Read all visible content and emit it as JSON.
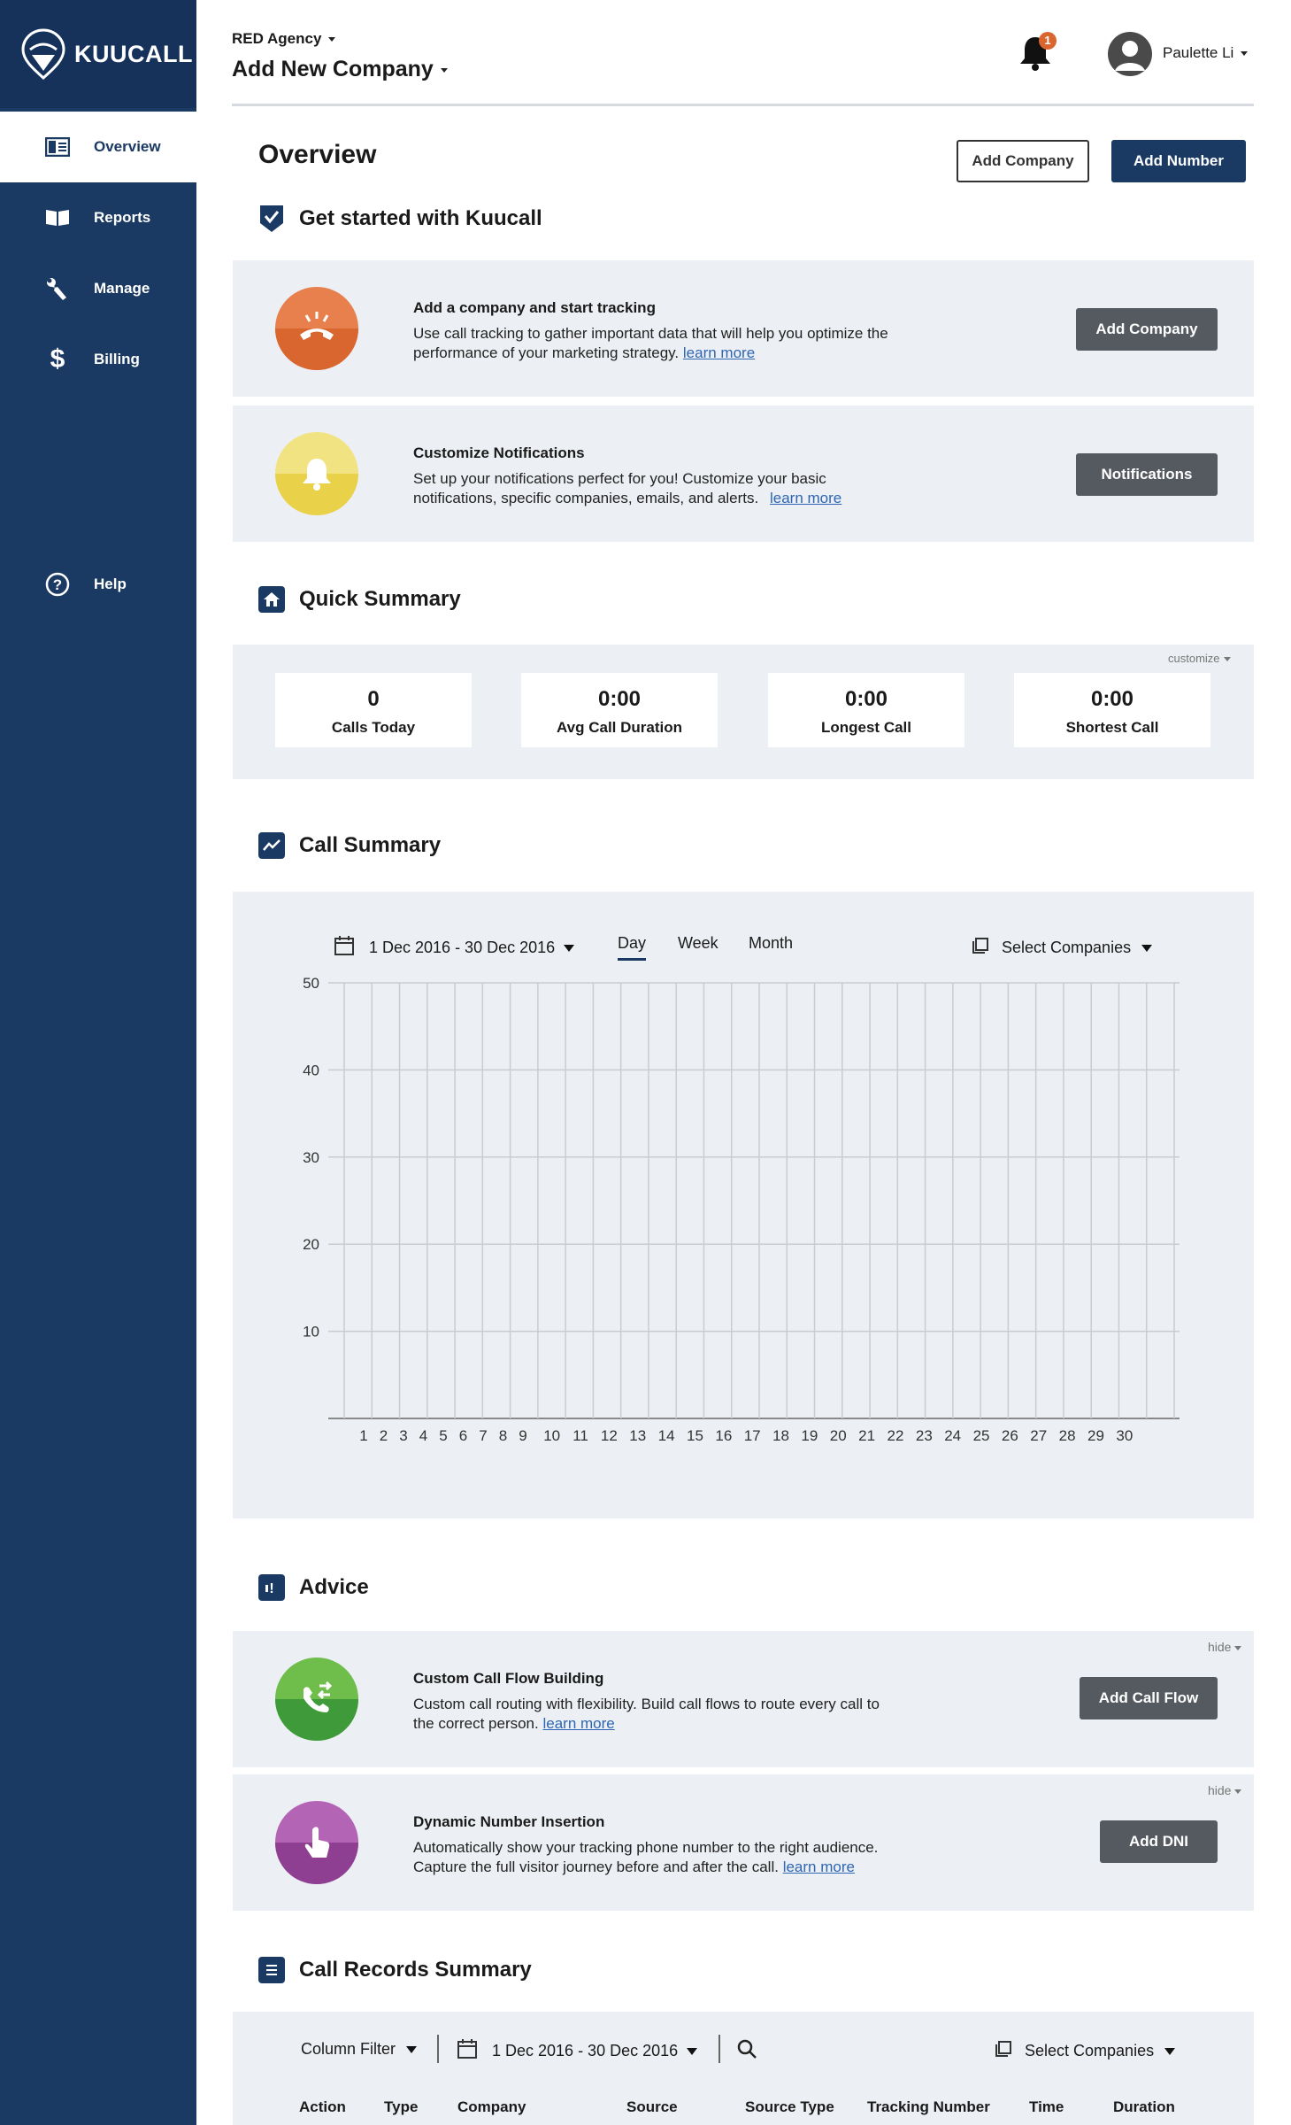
{
  "brand": {
    "name": "KUUCALL"
  },
  "sidebar": {
    "items": [
      {
        "label": "Overview",
        "icon": "overview-icon",
        "active": true
      },
      {
        "label": "Reports",
        "icon": "book-icon"
      },
      {
        "label": "Manage",
        "icon": "wrench-icon"
      },
      {
        "label": "Billing",
        "icon": "dollar-icon"
      }
    ],
    "help": {
      "label": "Help",
      "icon": "help-icon"
    }
  },
  "header": {
    "agency": "RED Agency",
    "company": "Add New Company",
    "notification_count": "1",
    "user": "Paulette Li"
  },
  "overview": {
    "title": "Overview",
    "add_company": "Add Company",
    "add_number": "Add Number"
  },
  "get_started": {
    "title": "Get started with Kuucall",
    "cards": [
      {
        "title": "Add a company and start tracking",
        "text_line1": "Use call tracking to gather important data that will help you optimize the",
        "text_line2": "performance of your marketing strategy.",
        "link": "learn more",
        "button": "Add Company",
        "color": "#d9652f"
      },
      {
        "title": "Customize Notifications",
        "text_line1": "Set up your notifications perfect for you! Customize your basic",
        "text_line2": "notifications, specific companies, emails, and alerts.",
        "link": "learn more",
        "button": "Notifications",
        "color": "#e9d24a"
      }
    ]
  },
  "quick_summary": {
    "title": "Quick Summary",
    "customize": "customize",
    "stats": [
      {
        "value": "0",
        "label": "Calls Today"
      },
      {
        "value": "0:00",
        "label": "Avg Call Duration"
      },
      {
        "value": "0:00",
        "label": "Longest Call"
      },
      {
        "value": "0:00",
        "label": "Shortest Call"
      }
    ]
  },
  "call_summary": {
    "title": "Call Summary",
    "date_range": "1 Dec 2016 - 30 Dec 2016",
    "tabs": [
      "Day",
      "Week",
      "Month"
    ],
    "active_tab": "Day",
    "select_companies": "Select Companies"
  },
  "chart_data": {
    "type": "bar",
    "categories": [
      "1",
      "2",
      "3",
      "4",
      "5",
      "6",
      "7",
      "8",
      "9",
      "10",
      "11",
      "12",
      "13",
      "14",
      "15",
      "16",
      "17",
      "18",
      "19",
      "20",
      "21",
      "22",
      "23",
      "24",
      "25",
      "26",
      "27",
      "28",
      "29",
      "30"
    ],
    "values": [
      0,
      0,
      0,
      0,
      0,
      0,
      0,
      0,
      0,
      0,
      0,
      0,
      0,
      0,
      0,
      0,
      0,
      0,
      0,
      0,
      0,
      0,
      0,
      0,
      0,
      0,
      0,
      0,
      0,
      0
    ],
    "yticks": [
      "10",
      "20",
      "30",
      "40",
      "50"
    ],
    "ylim": [
      0,
      50
    ],
    "grid": true
  },
  "advice": {
    "title": "Advice",
    "hide": "hide",
    "cards": [
      {
        "title": "Custom Call Flow Building",
        "text_line1": "Custom call routing with flexibility. Build call flows to route every call to",
        "text_line2": "the correct person.",
        "link": "learn more",
        "button": "Add Call Flow",
        "color": "#3f9a3a"
      },
      {
        "title": "Dynamic Number Insertion",
        "text_line1": "Automatically show your tracking phone number to the right audience.",
        "text_line2": "Capture the full visitor journey before and after the call.",
        "link": "learn more",
        "button": "Add DNI",
        "color": "#8e3f91"
      }
    ]
  },
  "call_records": {
    "title": "Call Records Summary",
    "column_filter": "Column Filter",
    "date_range": "1 Dec 2016 - 30 Dec 2016",
    "select_companies": "Select Companies",
    "columns": [
      "Action",
      "Type",
      "Company",
      "Source",
      "Source Type",
      "Tracking Number",
      "Time",
      "Duration"
    ]
  }
}
